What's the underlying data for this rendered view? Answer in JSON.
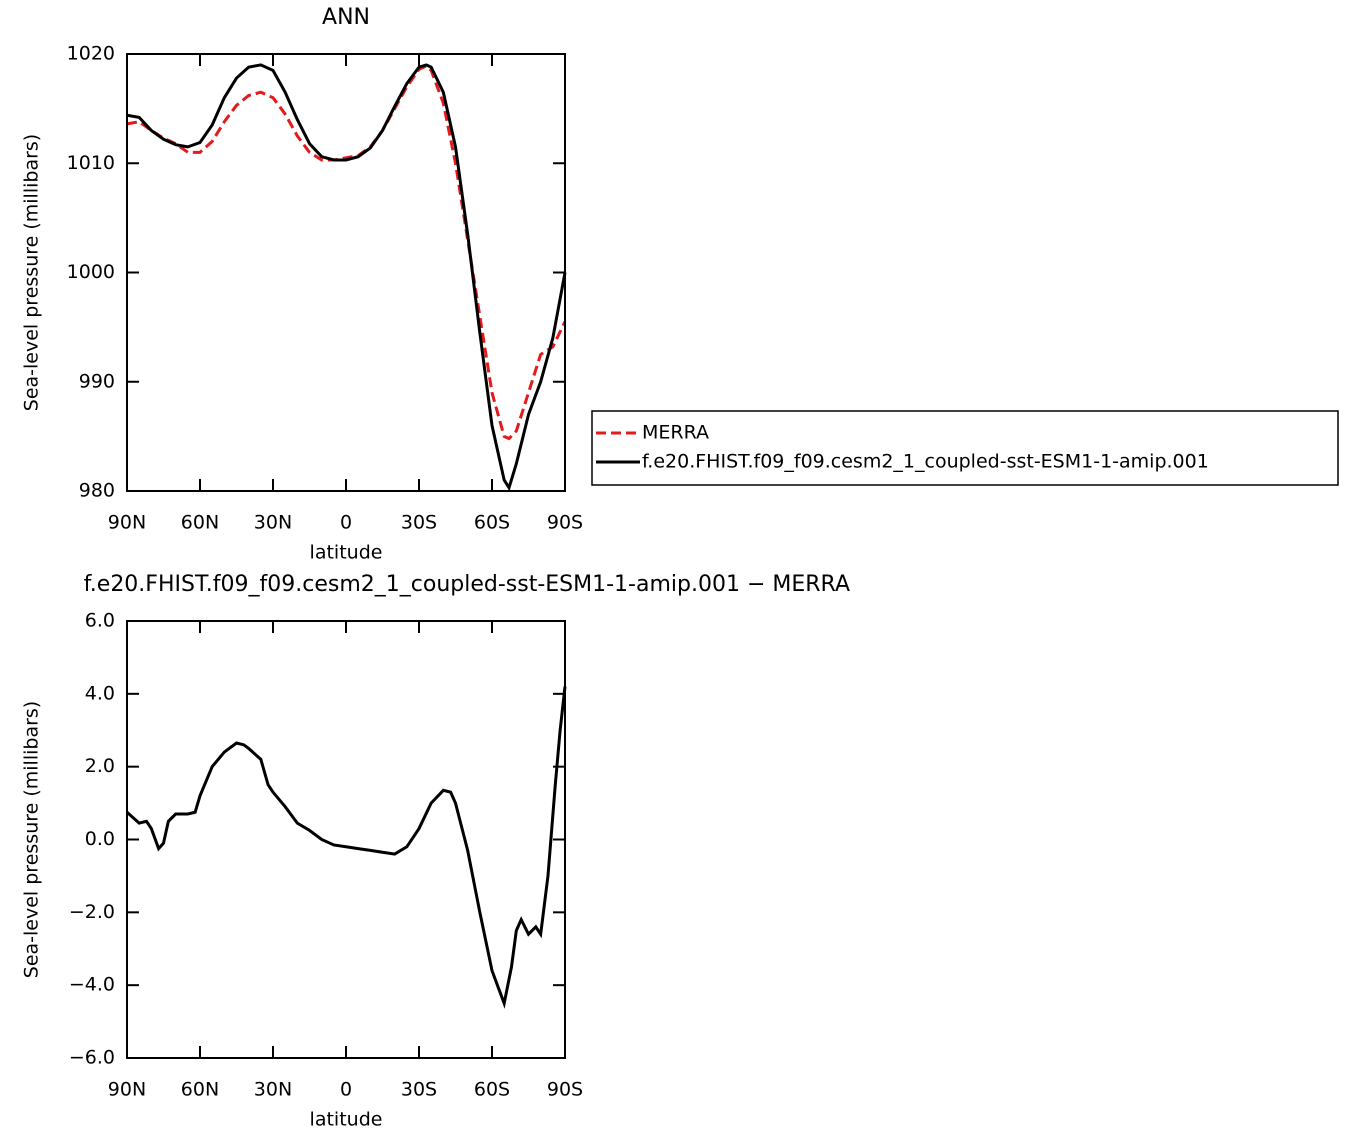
{
  "chart_data": [
    {
      "type": "line",
      "title": "ANN",
      "x_label": "latitude",
      "y_label": "Sea-level pressure (millibars)",
      "x": [
        90,
        85,
        80,
        75,
        70,
        65,
        60,
        55,
        50,
        45,
        40,
        35,
        30,
        25,
        20,
        15,
        10,
        5,
        0,
        -5,
        -10,
        -15,
        -20,
        -25,
        -30,
        -33,
        -35,
        -40,
        -45,
        -50,
        -55,
        -60,
        -65,
        -67,
        -70,
        -75,
        -80,
        -85,
        -90
      ],
      "series": [
        {
          "name": "MERRA",
          "color": "#e41a1c",
          "linestyle": "dashed",
          "values": [
            1013.6,
            1013.8,
            1013.0,
            1012.3,
            1011.8,
            1011.0,
            1011.0,
            1012.0,
            1013.8,
            1015.3,
            1016.2,
            1016.5,
            1016.0,
            1014.5,
            1012.5,
            1011.0,
            1010.3,
            1010.3,
            1010.5,
            1010.7,
            1011.5,
            1013.0,
            1015.0,
            1017.0,
            1018.6,
            1018.9,
            1018.5,
            1015.5,
            1010.0,
            1003.0,
            996.0,
            989.0,
            985.0,
            984.8,
            985.5,
            989.0,
            992.5,
            993.2,
            995.5
          ]
        },
        {
          "name": "f.e20.FHIST.f09_f09.cesm2_1_coupled-sst-ESM1-1-amip.001",
          "color": "#000000",
          "linestyle": "solid",
          "values": [
            1014.4,
            1014.2,
            1013.0,
            1012.2,
            1011.7,
            1011.5,
            1011.9,
            1013.5,
            1016.0,
            1017.8,
            1018.8,
            1019.0,
            1018.5,
            1016.5,
            1014.0,
            1011.8,
            1010.6,
            1010.3,
            1010.3,
            1010.6,
            1011.4,
            1013.0,
            1015.2,
            1017.3,
            1018.8,
            1019.0,
            1018.8,
            1016.5,
            1011.5,
            1003.5,
            994.5,
            986.0,
            981.0,
            980.3,
            982.5,
            987.0,
            990.0,
            994.0,
            1000.0
          ]
        }
      ],
      "xlim": [
        90,
        -90
      ],
      "xticks": [
        {
          "value": 90,
          "label": "90N"
        },
        {
          "value": 60,
          "label": "60N"
        },
        {
          "value": 30,
          "label": "30N"
        },
        0,
        {
          "value": -30,
          "label": "30S"
        },
        {
          "value": -60,
          "label": "60S"
        },
        {
          "value": -90,
          "label": "90S"
        }
      ],
      "ylim": [
        980,
        1020
      ],
      "yticks": [
        980,
        990,
        1000,
        1010,
        1020
      ],
      "legend": "outside-right"
    },
    {
      "type": "line",
      "title": "f.e20.FHIST.f09_f09.cesm2_1_coupled-sst-ESM1-1-amip.001 − MERRA",
      "x_label": "latitude",
      "y_label": "Sea-level pressure (millibars)",
      "x": [
        90,
        85,
        82,
        80,
        77,
        75,
        73,
        70,
        65,
        62,
        60,
        55,
        50,
        45,
        42,
        40,
        35,
        32,
        30,
        25,
        20,
        15,
        10,
        5,
        0,
        -5,
        -10,
        -15,
        -20,
        -25,
        -30,
        -35,
        -40,
        -43,
        -45,
        -50,
        -55,
        -60,
        -65,
        -68,
        -70,
        -72,
        -75,
        -78,
        -80,
        -83,
        -86,
        -88,
        -90
      ],
      "series": [
        {
          "color": "#000000",
          "linestyle": "solid",
          "values": [
            0.75,
            0.45,
            0.5,
            0.3,
            -0.25,
            -0.1,
            0.5,
            0.7,
            0.7,
            0.75,
            1.2,
            2.0,
            2.4,
            2.65,
            2.6,
            2.5,
            2.2,
            1.5,
            1.3,
            0.9,
            0.45,
            0.25,
            0.0,
            -0.15,
            -0.2,
            -0.25,
            -0.3,
            -0.35,
            -0.4,
            -0.2,
            0.3,
            1.0,
            1.35,
            1.3,
            1.0,
            -0.3,
            -2.0,
            -3.6,
            -4.5,
            -3.5,
            -2.5,
            -2.2,
            -2.6,
            -2.4,
            -2.6,
            -1.0,
            1.5,
            3.0,
            4.2
          ]
        }
      ],
      "xlim": [
        90,
        -90
      ],
      "xticks": [
        {
          "value": 90,
          "label": "90N"
        },
        {
          "value": 60,
          "label": "60N"
        },
        {
          "value": 30,
          "label": "30N"
        },
        0,
        {
          "value": -30,
          "label": "30S"
        },
        {
          "value": -60,
          "label": "60S"
        },
        {
          "value": -90,
          "label": "90S"
        }
      ],
      "ylim": [
        -6,
        6
      ],
      "yticks": [
        {
          "value": -6,
          "label": "−6.0"
        },
        {
          "value": -4,
          "label": "−4.0"
        },
        {
          "value": -2,
          "label": "−2.0"
        },
        {
          "value": 0,
          "label": "0.0"
        },
        {
          "value": 2,
          "label": "2.0"
        },
        {
          "value": 4,
          "label": "4.0"
        },
        {
          "value": 6,
          "label": "6.0"
        }
      ]
    }
  ]
}
